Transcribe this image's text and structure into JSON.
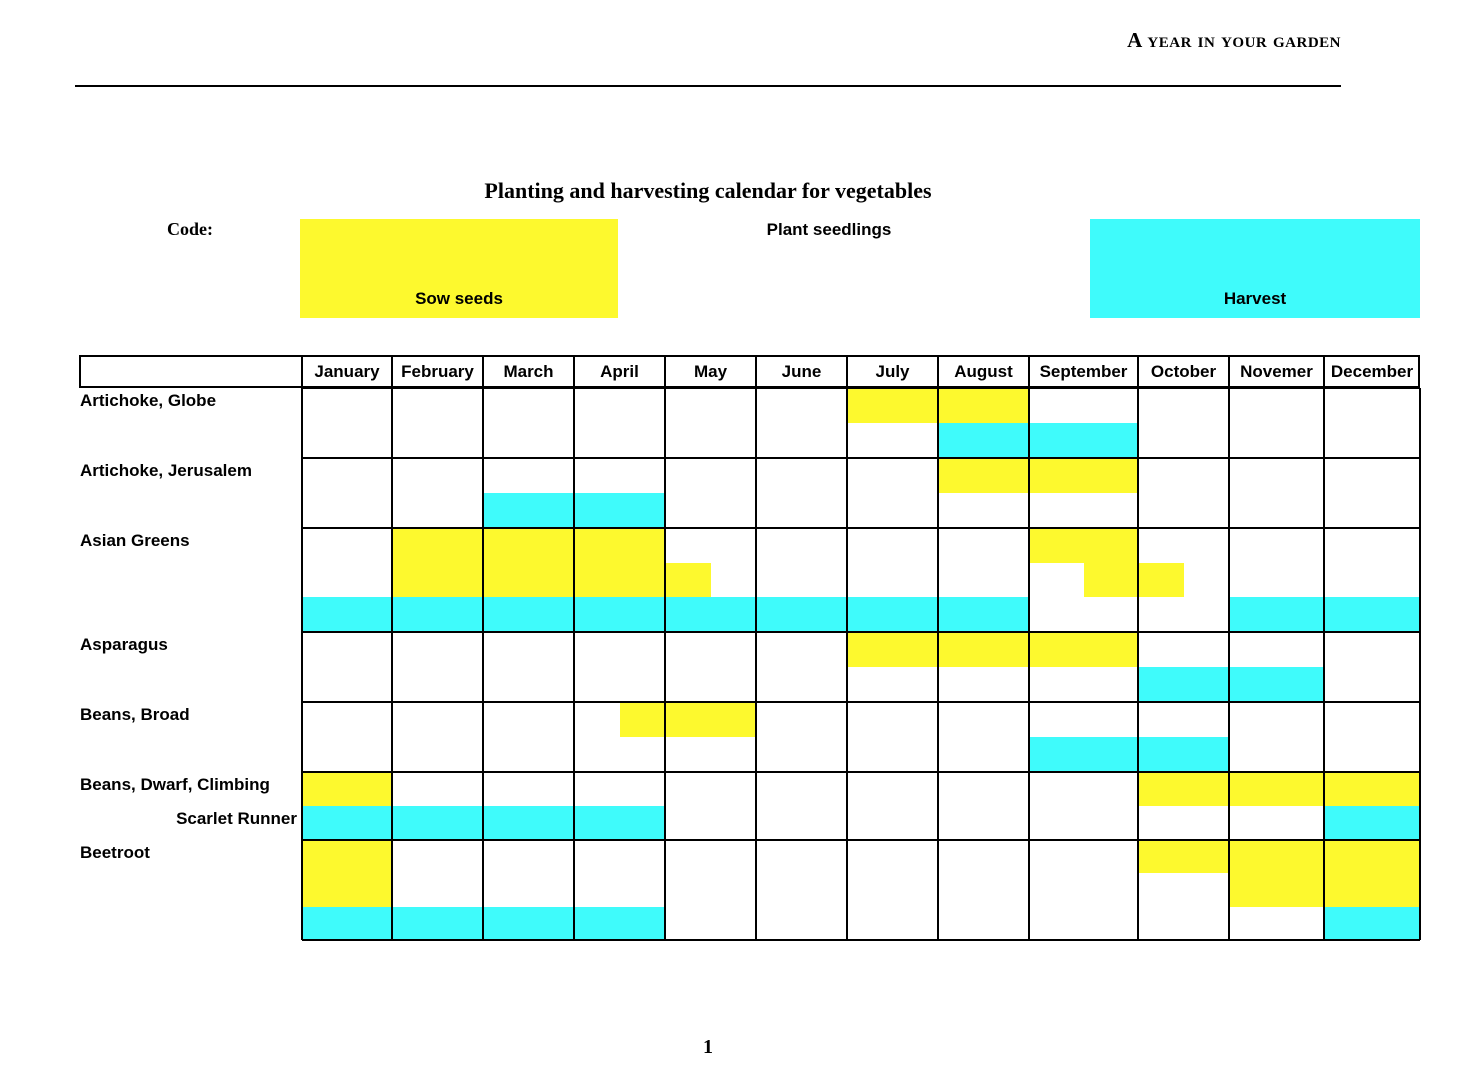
{
  "page": {
    "running_header": "A year in your garden",
    "page_number": "1"
  },
  "title": "Planting and harvesting calendar for vegetables",
  "legend": {
    "code_label": "Code:",
    "sow_label": "Sow seeds",
    "plant_label": "Plant seedlings",
    "harvest_label": "Harvest",
    "sow_color": "#fdf92e",
    "harvest_color": "#3ffbfb"
  },
  "calendar": {
    "months": [
      "January",
      "February",
      "March",
      "April",
      "May",
      "June",
      "July",
      "August",
      "September",
      "October",
      "Novemer",
      "December"
    ],
    "bands": [
      {
        "labels": [
          {
            "text": "Artichoke, Globe",
            "align": "left"
          }
        ],
        "sub_rows": 2,
        "cells": [
          {
            "type": "sow",
            "row": 0,
            "rowspan": 1,
            "from": 6,
            "to": 8
          },
          {
            "type": "harvest",
            "row": 1,
            "rowspan": 1,
            "from": 7,
            "to": 9
          }
        ]
      },
      {
        "labels": [
          {
            "text": "Artichoke, Jerusalem",
            "align": "left"
          }
        ],
        "sub_rows": 2,
        "cells": [
          {
            "type": "sow",
            "row": 0,
            "rowspan": 1,
            "from": 7,
            "to": 9
          },
          {
            "type": "harvest",
            "row": 1,
            "rowspan": 1,
            "from": 2,
            "to": 4
          }
        ]
      },
      {
        "labels": [
          {
            "text": "Asian Greens",
            "align": "left"
          }
        ],
        "sub_rows": 3,
        "cells": [
          {
            "type": "sow",
            "row": 0,
            "rowspan": 2,
            "from": 1,
            "to": 4
          },
          {
            "type": "sow",
            "row": 0,
            "rowspan": 1,
            "from": 8,
            "to": 9
          },
          {
            "type": "sow",
            "row": 1,
            "rowspan": 1,
            "from": 4,
            "to": 4.5
          },
          {
            "type": "sow",
            "row": 1,
            "rowspan": 1,
            "from": 8.5,
            "to": 9
          },
          {
            "type": "sow",
            "row": 1,
            "rowspan": 1,
            "from": 9,
            "to": 9.5
          },
          {
            "type": "harvest",
            "row": 2,
            "rowspan": 1,
            "from": 0,
            "to": 8
          },
          {
            "type": "harvest",
            "row": 2,
            "rowspan": 1,
            "from": 10,
            "to": 12
          }
        ]
      },
      {
        "labels": [
          {
            "text": "Asparagus",
            "align": "left"
          }
        ],
        "sub_rows": 2,
        "cells": [
          {
            "type": "sow",
            "row": 0,
            "rowspan": 1,
            "from": 6,
            "to": 9
          },
          {
            "type": "harvest",
            "row": 1,
            "rowspan": 1,
            "from": 9,
            "to": 11
          }
        ]
      },
      {
        "labels": [
          {
            "text": "Beans, Broad",
            "align": "left"
          }
        ],
        "sub_rows": 2,
        "cells": [
          {
            "type": "sow",
            "row": 0,
            "rowspan": 1,
            "from": 3.5,
            "to": 5
          },
          {
            "type": "harvest",
            "row": 1,
            "rowspan": 1,
            "from": 8,
            "to": 10
          }
        ]
      },
      {
        "labels": [
          {
            "text": "Beans, Dwarf, Climbing",
            "align": "left"
          },
          {
            "text": "Scarlet Runner",
            "align": "right"
          }
        ],
        "sub_rows": 2,
        "cells": [
          {
            "type": "sow",
            "row": 0,
            "rowspan": 1,
            "from": 0,
            "to": 1
          },
          {
            "type": "sow",
            "row": 0,
            "rowspan": 1,
            "from": 9,
            "to": 12
          },
          {
            "type": "harvest",
            "row": 1,
            "rowspan": 1,
            "from": 0,
            "to": 4
          },
          {
            "type": "harvest",
            "row": 1,
            "rowspan": 1,
            "from": 11,
            "to": 12
          }
        ]
      },
      {
        "labels": [
          {
            "text": "Beetroot",
            "align": "left"
          }
        ],
        "sub_rows": 3,
        "cells": [
          {
            "type": "sow",
            "row": 0,
            "rowspan": 2,
            "from": 0,
            "to": 1
          },
          {
            "type": "sow",
            "row": 0,
            "rowspan": 1,
            "from": 9,
            "to": 10
          },
          {
            "type": "sow",
            "row": 0,
            "rowspan": 2,
            "from": 10,
            "to": 12
          },
          {
            "type": "harvest",
            "row": 2,
            "rowspan": 1,
            "from": 0,
            "to": 4
          },
          {
            "type": "harvest",
            "row": 2,
            "rowspan": 1,
            "from": 11,
            "to": 12
          }
        ]
      }
    ]
  }
}
